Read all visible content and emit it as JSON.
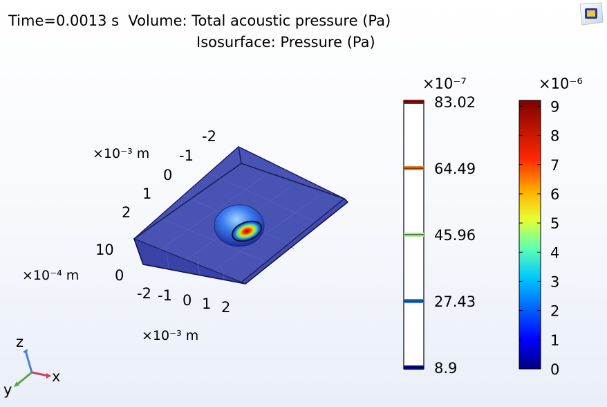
{
  "header": {
    "title_line1": "Time=0.0013 s  Volume: Total acoustic pressure (Pa)",
    "title_line2": "Isosurface: Pressure (Pa)"
  },
  "axes3d": {
    "y_unit": "×10⁻³ m",
    "y_ticks": [
      "-2",
      "-1",
      "0",
      "1",
      "2"
    ],
    "z_unit": "×10⁻⁴ m",
    "z_ticks": [
      "10",
      "0"
    ],
    "x_unit": "×10⁻³ m",
    "x_ticks": [
      "-2",
      "-1",
      "0",
      "1",
      "2"
    ]
  },
  "triad": {
    "z": "z",
    "x": "x",
    "y": "y"
  },
  "chart_data": [
    {
      "type": "colorbar",
      "name": "Isosurface: Pressure (Pa)",
      "multiplier": "×10⁻⁷",
      "ticks": [
        "83.02",
        "64.49",
        "45.96",
        "27.43",
        "8.9"
      ],
      "levels": [
        83.02,
        64.49,
        45.96,
        27.43,
        8.9
      ],
      "level_colors": [
        "#8b1a10",
        "#f0822a",
        "#a6f29a",
        "#2a7ff0",
        "#050a7a"
      ]
    },
    {
      "type": "colorbar",
      "name": "Volume: Total acoustic pressure (Pa)",
      "multiplier": "×10⁻⁶",
      "ticks": [
        "9",
        "8",
        "7",
        "6",
        "5",
        "4",
        "3",
        "2",
        "1",
        "0"
      ],
      "range": [
        0,
        9.2
      ],
      "colors": [
        "#00007f",
        "#0000ff",
        "#007fff",
        "#00ffff",
        "#7fff7f",
        "#ffff00",
        "#ff7f00",
        "#ff0000",
        "#7f0000"
      ]
    }
  ],
  "icons": {
    "logo": "comsol-graphics-icon",
    "triad": "axis-triad-icon"
  }
}
